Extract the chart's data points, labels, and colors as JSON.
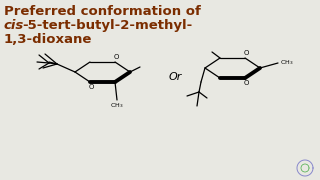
{
  "title_line1": "Preferred conformation of",
  "title_line2_italic": "cis",
  "title_line2_rest": "-5-tert-butyl-2-methyl-",
  "title_line3": "1,3-dioxane",
  "title_color": "#7B2D00",
  "bg_color": "#E8E8E2",
  "or_text": "Or",
  "font_size_title": 9.5,
  "font_size_body": 5.5,
  "lw_thin": 0.9,
  "lw_thick": 2.8
}
